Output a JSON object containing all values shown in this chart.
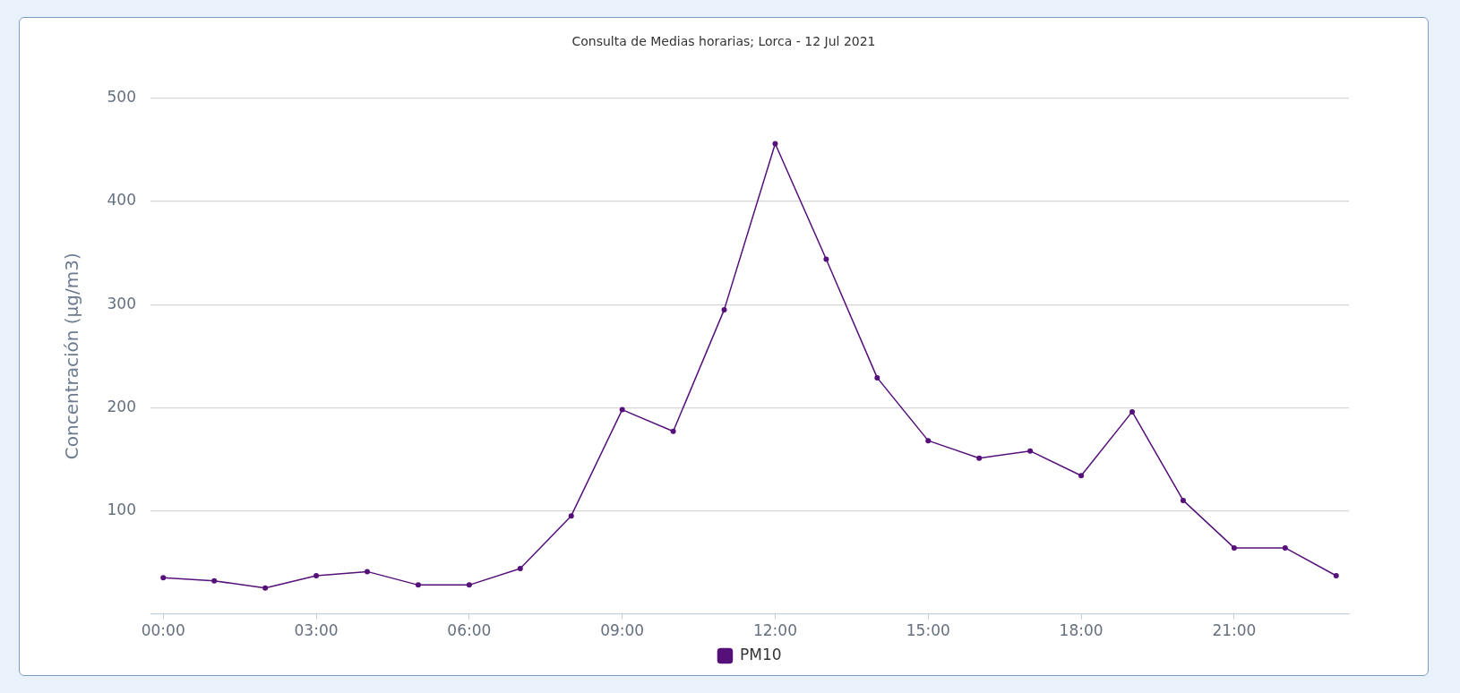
{
  "chart_data": {
    "type": "line",
    "title": "Consulta de Medias horarias; Lorca - 12 Jul 2021",
    "ylabel": "Concentración (µg/m3)",
    "x": [
      0,
      1,
      2,
      3,
      4,
      5,
      6,
      7,
      8,
      9,
      10,
      11,
      12,
      13,
      14,
      15,
      16,
      17,
      18,
      19,
      20,
      21,
      22,
      23
    ],
    "series": [
      {
        "name": "PM10",
        "color": "#55107a",
        "values": [
          35,
          32,
          25,
          37,
          41,
          28,
          28,
          44,
          95,
          198,
          177,
          295,
          456,
          344,
          229,
          168,
          151,
          158,
          134,
          196,
          110,
          64,
          64,
          37
        ]
      }
    ],
    "xlim": [
      -0.25,
      23.25
    ],
    "xticks": [
      {
        "value": 0,
        "label": "00:00"
      },
      {
        "value": 3,
        "label": "03:00"
      },
      {
        "value": 6,
        "label": "06:00"
      },
      {
        "value": 9,
        "label": "09:00"
      },
      {
        "value": 12,
        "label": "12:00"
      },
      {
        "value": 15,
        "label": "15:00"
      },
      {
        "value": 18,
        "label": "18:00"
      },
      {
        "value": 21,
        "label": "21:00"
      }
    ],
    "ylim": [
      0,
      500
    ],
    "yticks": [
      {
        "value": 0,
        "label": null
      },
      100,
      200,
      300,
      400,
      500
    ],
    "grid": "y",
    "legend": "bottom",
    "marker": "circle",
    "line_style": "solid"
  }
}
